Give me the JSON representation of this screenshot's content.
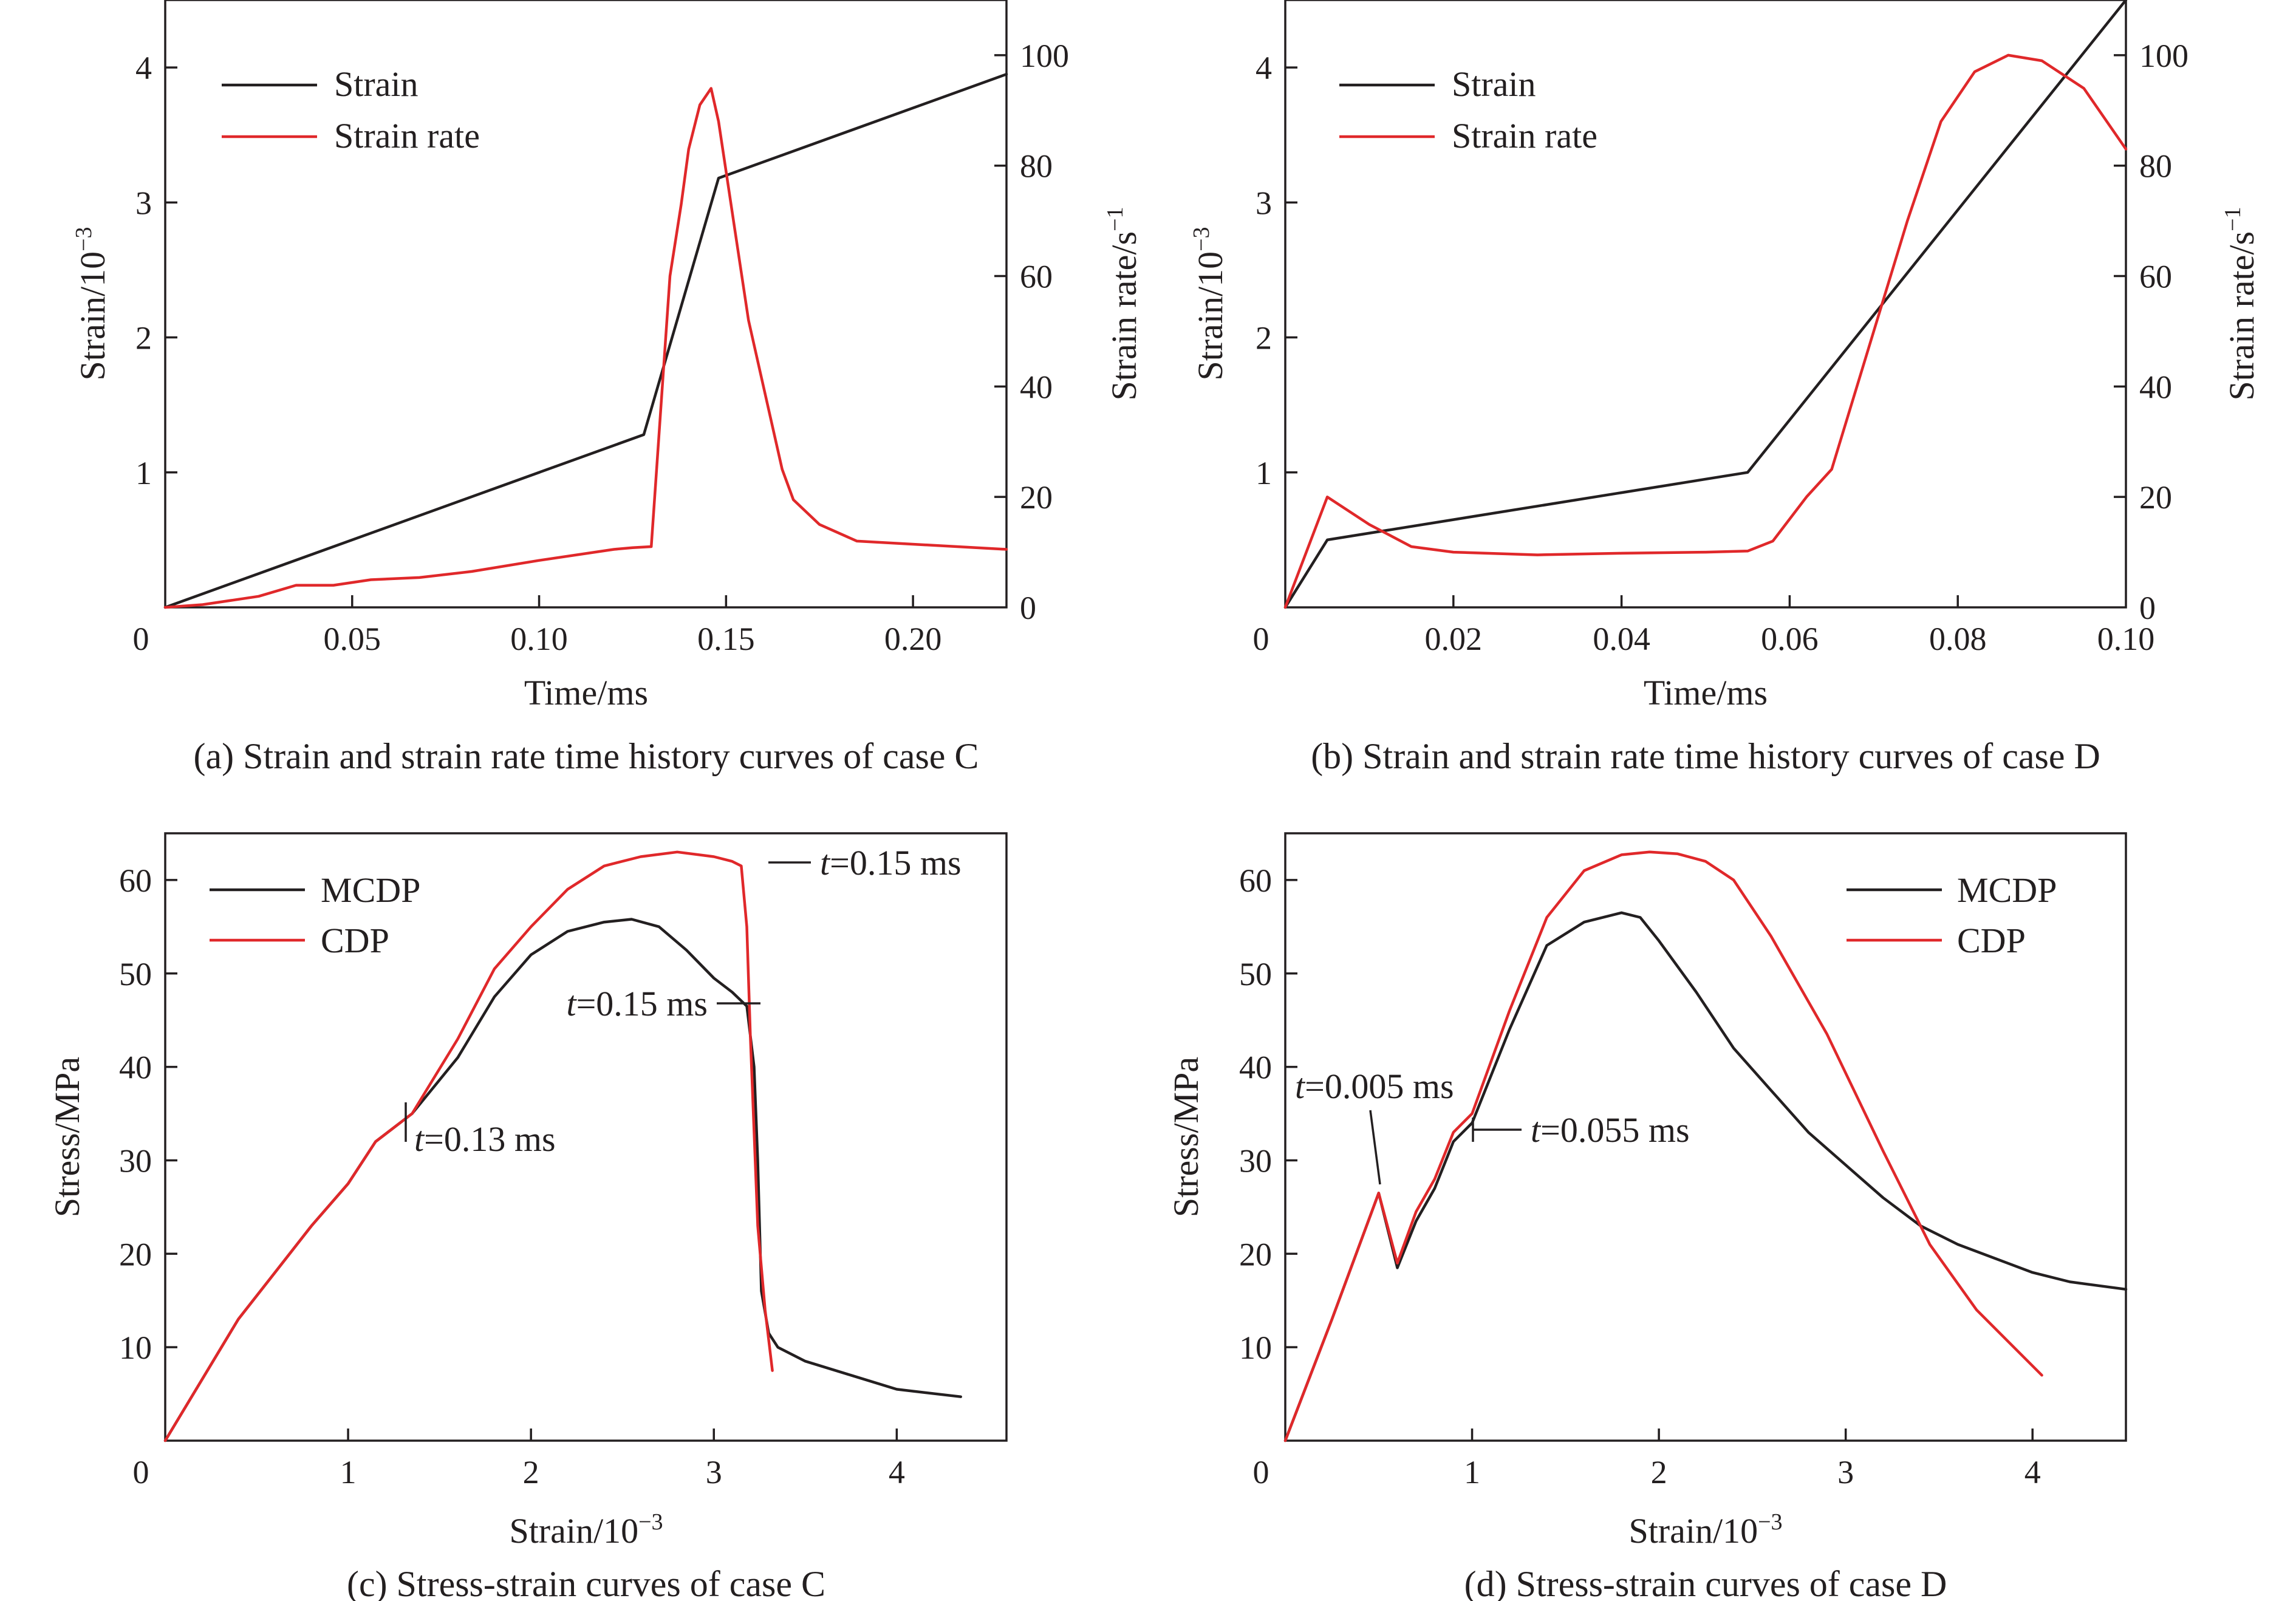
{
  "colors": {
    "black": "#231f20",
    "red": "#e0282a"
  },
  "chart_data": [
    {
      "id": "a",
      "type": "line",
      "caption": "(a) Strain and strain rate time history curves of case C",
      "xlabel": "Time/ms",
      "ylabel": "Strain/10",
      "ylabel_sup": "−3",
      "y2label": "Strain rate/s",
      "y2label_sup": "−1",
      "xlim": [
        0,
        0.225
      ],
      "ylim": [
        0,
        4.5
      ],
      "y2lim": [
        0,
        110
      ],
      "x_ticks": [
        {
          "v": 0,
          "label": "0"
        },
        {
          "v": 0.05,
          "label": "0.05"
        },
        {
          "v": 0.1,
          "label": "0.10"
        },
        {
          "v": 0.15,
          "label": "0.15"
        },
        {
          "v": 0.2,
          "label": "0.20"
        }
      ],
      "y_ticks": [
        {
          "v": 1,
          "label": "1"
        },
        {
          "v": 2,
          "label": "2"
        },
        {
          "v": 3,
          "label": "3"
        },
        {
          "v": 4,
          "label": "4"
        }
      ],
      "y2_ticks": [
        {
          "v": 0,
          "label": "0"
        },
        {
          "v": 20,
          "label": "20"
        },
        {
          "v": 40,
          "label": "40"
        },
        {
          "v": 60,
          "label": "60"
        },
        {
          "v": 80,
          "label": "80"
        },
        {
          "v": 100,
          "label": "100"
        }
      ],
      "legend_position": "top-left",
      "series": [
        {
          "name": "Strain",
          "color_key": "black",
          "axis": "left",
          "points": [
            [
              0,
              0
            ],
            [
              0.128,
              1.28
            ],
            [
              0.148,
              3.18
            ],
            [
              0.225,
              3.95
            ]
          ]
        },
        {
          "name": "Strain rate",
          "color_key": "red",
          "axis": "right",
          "points": [
            [
              0,
              0
            ],
            [
              0.01,
              0.5
            ],
            [
              0.025,
              2
            ],
            [
              0.035,
              4
            ],
            [
              0.045,
              4
            ],
            [
              0.055,
              5
            ],
            [
              0.068,
              5.4
            ],
            [
              0.082,
              6.5
            ],
            [
              0.1,
              8.5
            ],
            [
              0.12,
              10.5
            ],
            [
              0.125,
              10.8
            ],
            [
              0.13,
              11
            ],
            [
              0.135,
              60
            ],
            [
              0.138,
              73
            ],
            [
              0.14,
              83
            ],
            [
              0.143,
              91
            ],
            [
              0.146,
              94
            ],
            [
              0.148,
              88
            ],
            [
              0.152,
              70
            ],
            [
              0.156,
              52
            ],
            [
              0.16,
              40
            ],
            [
              0.165,
              25
            ],
            [
              0.168,
              19.5
            ],
            [
              0.175,
              15
            ],
            [
              0.185,
              12
            ],
            [
              0.225,
              10.5
            ]
          ]
        }
      ],
      "annotations": []
    },
    {
      "id": "b",
      "type": "line",
      "caption": "(b) Strain and strain rate time history curves of case D",
      "xlabel": "Time/ms",
      "ylabel": "Strain/10",
      "ylabel_sup": "−3",
      "y2label": "Strain rate/s",
      "y2label_sup": "−1",
      "xlim": [
        0,
        0.1
      ],
      "ylim": [
        0,
        4.5
      ],
      "y2lim": [
        0,
        110
      ],
      "x_ticks": [
        {
          "v": 0,
          "label": "0"
        },
        {
          "v": 0.02,
          "label": "0.02"
        },
        {
          "v": 0.04,
          "label": "0.04"
        },
        {
          "v": 0.06,
          "label": "0.06"
        },
        {
          "v": 0.08,
          "label": "0.08"
        },
        {
          "v": 0.1,
          "label": "0.10"
        }
      ],
      "y_ticks": [
        {
          "v": 1,
          "label": "1"
        },
        {
          "v": 2,
          "label": "2"
        },
        {
          "v": 3,
          "label": "3"
        },
        {
          "v": 4,
          "label": "4"
        }
      ],
      "y2_ticks": [
        {
          "v": 0,
          "label": "0"
        },
        {
          "v": 20,
          "label": "20"
        },
        {
          "v": 40,
          "label": "40"
        },
        {
          "v": 60,
          "label": "60"
        },
        {
          "v": 80,
          "label": "80"
        },
        {
          "v": 100,
          "label": "100"
        }
      ],
      "legend_position": "top-left",
      "series": [
        {
          "name": "Strain",
          "color_key": "black",
          "axis": "left",
          "points": [
            [
              0,
              0
            ],
            [
              0.005,
              0.5
            ],
            [
              0.055,
              1.0
            ],
            [
              0.1,
              4.5
            ]
          ]
        },
        {
          "name": "Strain rate",
          "color_key": "red",
          "axis": "right",
          "points": [
            [
              0,
              0
            ],
            [
              0.005,
              20
            ],
            [
              0.01,
              15
            ],
            [
              0.015,
              11
            ],
            [
              0.02,
              10
            ],
            [
              0.03,
              9.5
            ],
            [
              0.04,
              9.8
            ],
            [
              0.05,
              10
            ],
            [
              0.055,
              10.2
            ],
            [
              0.058,
              12
            ],
            [
              0.062,
              20
            ],
            [
              0.065,
              25
            ],
            [
              0.07,
              50
            ],
            [
              0.074,
              70
            ],
            [
              0.078,
              88
            ],
            [
              0.082,
              97
            ],
            [
              0.086,
              100
            ],
            [
              0.09,
              99
            ],
            [
              0.095,
              94
            ],
            [
              0.1,
              83
            ]
          ]
        }
      ],
      "annotations": []
    },
    {
      "id": "c",
      "type": "line",
      "caption": "(c) Stress-strain curves of case C",
      "xlabel": "Strain/10",
      "xlabel_sup": "−3",
      "ylabel": "Stress/MPa",
      "xlim": [
        0,
        4.6
      ],
      "ylim": [
        0,
        65
      ],
      "x_ticks": [
        {
          "v": 0,
          "label": "0"
        },
        {
          "v": 1,
          "label": "1"
        },
        {
          "v": 2,
          "label": "2"
        },
        {
          "v": 3,
          "label": "3"
        },
        {
          "v": 4,
          "label": "4"
        }
      ],
      "y_ticks": [
        {
          "v": 10,
          "label": "10"
        },
        {
          "v": 20,
          "label": "20"
        },
        {
          "v": 30,
          "label": "30"
        },
        {
          "v": 40,
          "label": "40"
        },
        {
          "v": 50,
          "label": "50"
        },
        {
          "v": 60,
          "label": "60"
        }
      ],
      "legend_position": "top-left",
      "series": [
        {
          "name": "MCDP",
          "color_key": "black",
          "points": [
            [
              0,
              0
            ],
            [
              0.2,
              6.5
            ],
            [
              0.4,
              13
            ],
            [
              0.6,
              18
            ],
            [
              0.8,
              23
            ],
            [
              1.0,
              27.5
            ],
            [
              1.15,
              32
            ],
            [
              1.35,
              35
            ],
            [
              1.6,
              41
            ],
            [
              1.8,
              47.5
            ],
            [
              2.0,
              52
            ],
            [
              2.2,
              54.5
            ],
            [
              2.4,
              55.5
            ],
            [
              2.55,
              55.8
            ],
            [
              2.7,
              55
            ],
            [
              2.85,
              52.5
            ],
            [
              3.0,
              49.5
            ],
            [
              3.1,
              48
            ],
            [
              3.18,
              46.5
            ],
            [
              3.22,
              40
            ],
            [
              3.24,
              30
            ],
            [
              3.26,
              16
            ],
            [
              3.3,
              11.5
            ],
            [
              3.35,
              10
            ],
            [
              3.5,
              8.5
            ],
            [
              3.75,
              7
            ],
            [
              4.0,
              5.5
            ],
            [
              4.35,
              4.7
            ]
          ]
        },
        {
          "name": "CDP",
          "color_key": "red",
          "points": [
            [
              0,
              0
            ],
            [
              0.2,
              6.5
            ],
            [
              0.4,
              13
            ],
            [
              0.6,
              18
            ],
            [
              0.8,
              23
            ],
            [
              1.0,
              27.5
            ],
            [
              1.15,
              32
            ],
            [
              1.35,
              35
            ],
            [
              1.6,
              43
            ],
            [
              1.8,
              50.5
            ],
            [
              2.0,
              55
            ],
            [
              2.2,
              59
            ],
            [
              2.4,
              61.5
            ],
            [
              2.6,
              62.5
            ],
            [
              2.8,
              63
            ],
            [
              3.0,
              62.5
            ],
            [
              3.1,
              62
            ],
            [
              3.15,
              61.5
            ],
            [
              3.18,
              55
            ],
            [
              3.2,
              43
            ],
            [
              3.22,
              33
            ],
            [
              3.24,
              23
            ],
            [
              3.28,
              14
            ],
            [
              3.32,
              7.5
            ]
          ]
        }
      ],
      "annotations": [
        {
          "text_italic": "t",
          "text_rest": "=0.15 ms",
          "x": 3.3,
          "y": 61.5
        },
        {
          "text_italic": "t",
          "text_rest": "=0.15 ms",
          "x": 3.18,
          "y": 46.5
        },
        {
          "text_italic": "t",
          "text_rest": "=0.13 ms",
          "x": 1.27,
          "y": 34
        }
      ]
    },
    {
      "id": "d",
      "type": "line",
      "caption": "(d) Stress-strain curves of case D",
      "xlabel": "Strain/10",
      "xlabel_sup": "−3",
      "ylabel": "Stress/MPa",
      "xlim": [
        0,
        4.5
      ],
      "ylim": [
        0,
        65
      ],
      "x_ticks": [
        {
          "v": 0,
          "label": "0"
        },
        {
          "v": 1,
          "label": "1"
        },
        {
          "v": 2,
          "label": "2"
        },
        {
          "v": 3,
          "label": "3"
        },
        {
          "v": 4,
          "label": "4"
        }
      ],
      "y_ticks": [
        {
          "v": 10,
          "label": "10"
        },
        {
          "v": 20,
          "label": "20"
        },
        {
          "v": 30,
          "label": "30"
        },
        {
          "v": 40,
          "label": "40"
        },
        {
          "v": 50,
          "label": "50"
        },
        {
          "v": 60,
          "label": "60"
        }
      ],
      "legend_position": "top-right",
      "series": [
        {
          "name": "MCDP",
          "color_key": "black",
          "points": [
            [
              0,
              0
            ],
            [
              0.25,
              13
            ],
            [
              0.5,
              26.5
            ],
            [
              0.6,
              18.5
            ],
            [
              0.7,
              23.5
            ],
            [
              0.8,
              27
            ],
            [
              0.9,
              32
            ],
            [
              1.0,
              34
            ],
            [
              1.2,
              44
            ],
            [
              1.4,
              53
            ],
            [
              1.6,
              55.5
            ],
            [
              1.8,
              56.5
            ],
            [
              1.9,
              56
            ],
            [
              2.0,
              53.5
            ],
            [
              2.2,
              48
            ],
            [
              2.4,
              42
            ],
            [
              2.6,
              37.5
            ],
            [
              2.8,
              33
            ],
            [
              3.0,
              29.5
            ],
            [
              3.2,
              26
            ],
            [
              3.4,
              23
            ],
            [
              3.6,
              21
            ],
            [
              3.8,
              19.5
            ],
            [
              4.0,
              18
            ],
            [
              4.2,
              17
            ],
            [
              4.5,
              16.2
            ]
          ]
        },
        {
          "name": "CDP",
          "color_key": "red",
          "points": [
            [
              0,
              0
            ],
            [
              0.25,
              13
            ],
            [
              0.5,
              26.5
            ],
            [
              0.6,
              19
            ],
            [
              0.7,
              24.5
            ],
            [
              0.8,
              28
            ],
            [
              0.9,
              33
            ],
            [
              1.0,
              35
            ],
            [
              1.2,
              46
            ],
            [
              1.4,
              56
            ],
            [
              1.6,
              61
            ],
            [
              1.8,
              62.7
            ],
            [
              1.95,
              63
            ],
            [
              2.1,
              62.8
            ],
            [
              2.25,
              62
            ],
            [
              2.4,
              60
            ],
            [
              2.6,
              54
            ],
            [
              2.9,
              43.5
            ],
            [
              3.2,
              31
            ],
            [
              3.45,
              21
            ],
            [
              3.7,
              14
            ],
            [
              4.05,
              7
            ]
          ]
        }
      ],
      "annotations": [
        {
          "text_italic": "t",
          "text_rest": "=0.005 ms",
          "x": 0.5,
          "y": 26.5
        },
        {
          "text_italic": "t",
          "text_rest": "=0.055 ms",
          "x": 1.0,
          "y": 34
        }
      ]
    }
  ]
}
